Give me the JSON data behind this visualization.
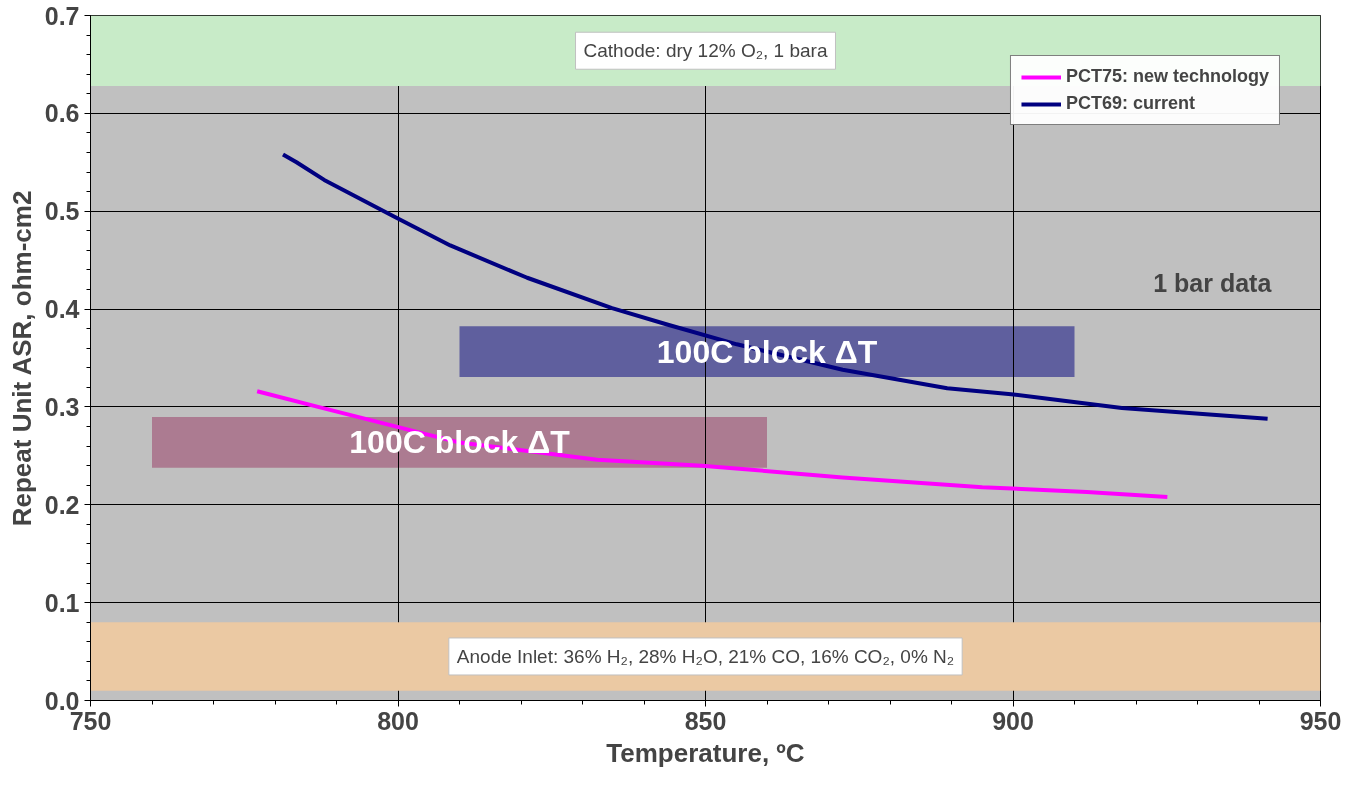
{
  "chart_data": {
    "type": "line",
    "xlabel": "Temperature, ºC",
    "ylabel": "Repeat Unit ASR, ohm-cm2",
    "xlim": [
      750,
      950
    ],
    "xticks": [
      750,
      800,
      850,
      900,
      950
    ],
    "ylim": [
      0,
      0.7
    ],
    "yticks": [
      {
        "value": 0,
        "label": "0.0"
      },
      0.1,
      0.2,
      0.3,
      0.4,
      0.5,
      0.6,
      0.7
    ],
    "grid": true,
    "legend": "top right",
    "line_style": "solid",
    "marker": "none",
    "series": [
      {
        "name": "PCT75: new technology",
        "color": "#ff00ff",
        "x": [
          777.1,
          787,
          809.7,
          832.4,
          849.4,
          872.3,
          895,
          912,
          925.1
        ],
        "values": [
          0.316,
          0.3,
          0.264,
          0.246,
          0.24,
          0.228,
          0.218,
          0.213,
          0.208
        ]
      },
      {
        "name": "PCT69: current",
        "color": "#000080",
        "x": [
          781.3,
          783.5,
          788.0,
          799.5,
          808.5,
          821,
          834.8,
          843.9,
          855.1,
          872.3,
          889.3,
          899.7,
          908.6,
          917.7,
          932.5,
          941.4
        ],
        "values": [
          0.558,
          0.55,
          0.532,
          0.494,
          0.465,
          0.432,
          0.401,
          0.384,
          0.364,
          0.338,
          0.319,
          0.313,
          0.306,
          0.299,
          0.292,
          0.288
        ]
      }
    ],
    "bands": [
      {
        "axis": "y",
        "from": 0.628,
        "to": 0.7,
        "label": "Cathode: dry 12% O₂, 1 bara",
        "color": "#c8ebc8"
      },
      {
        "axis": "y",
        "from": 0.01,
        "to": 0.08,
        "label": "Anode Inlet: 36% H₂, 28% H₂O, 21% CO, 16% CO₂, 0% N₂",
        "color": "#ebc9a3"
      },
      {
        "axis": "x",
        "from": 760,
        "to": 860,
        "label": "100C block ΔT",
        "color": "#ac7b91"
      },
      {
        "axis": "x",
        "from": 810,
        "to": 910,
        "label": "100C block ΔT",
        "color": "#5f5f9e"
      }
    ],
    "annotations": [
      "1 bar data"
    ]
  }
}
